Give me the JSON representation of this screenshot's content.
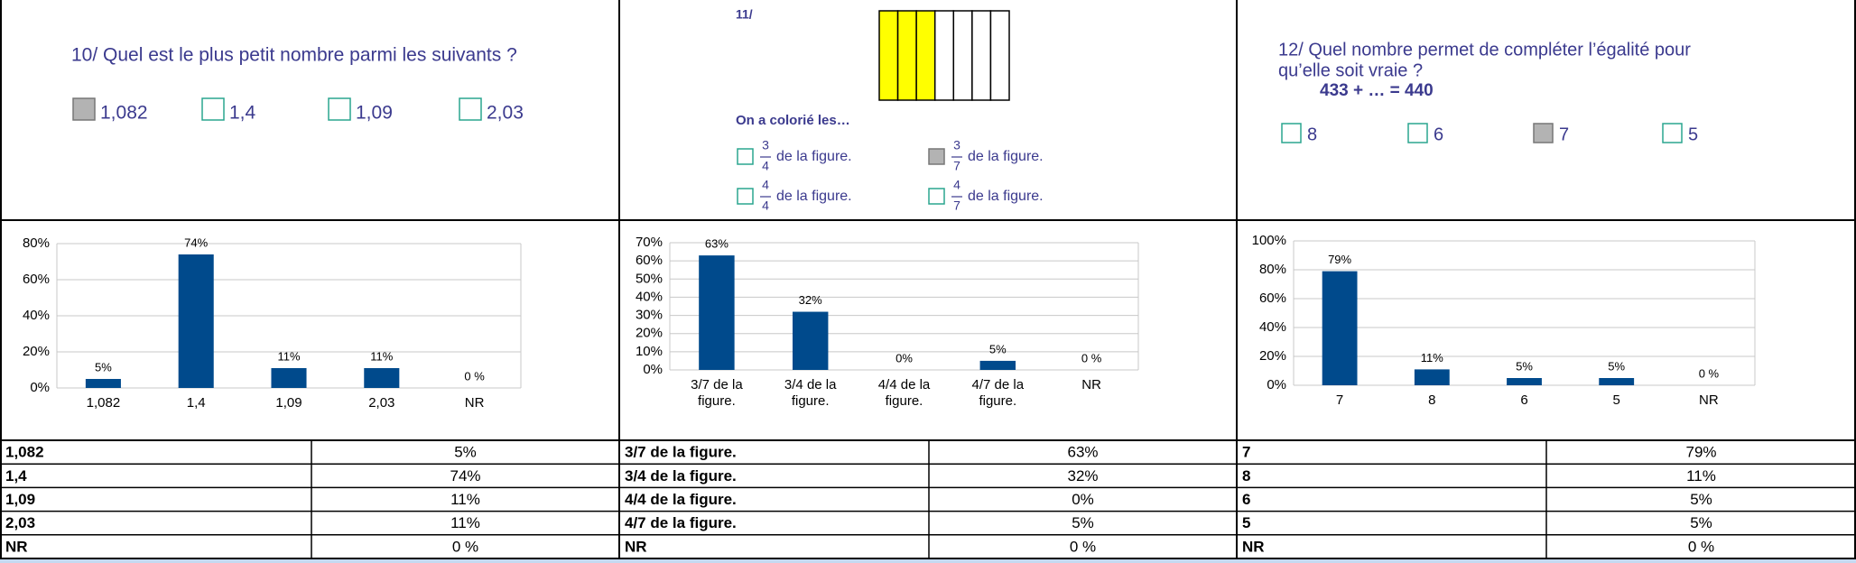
{
  "questions": [
    {
      "title": "10/ Quel est le plus petit nombre parmi les suivants ?",
      "options": [
        {
          "label": "1,082",
          "checked": true
        },
        {
          "label": "1,4",
          "checked": false
        },
        {
          "label": "1,09",
          "checked": false
        },
        {
          "label": "2,03",
          "checked": false
        }
      ]
    },
    {
      "label": "11/",
      "figure": {
        "parts": 7,
        "colored": 3,
        "color": "#ffff00"
      },
      "prompt": "On a colorié les…",
      "options": [
        {
          "numerator": "3",
          "denominator": "4",
          "text": "de la figure.",
          "checked": false
        },
        {
          "numerator": "3",
          "denominator": "7",
          "text": "de la figure.",
          "checked": true
        },
        {
          "numerator": "4",
          "denominator": "4",
          "text": "de la figure.",
          "checked": false
        },
        {
          "numerator": "4",
          "denominator": "7",
          "text": "de la figure.",
          "checked": false
        }
      ]
    },
    {
      "title": [
        "12/ Quel nombre permet de compléter l’égalité pour",
        "qu’elle soit vraie ?"
      ],
      "equation": "433 + … = 440",
      "options": [
        {
          "label": "8",
          "checked": false
        },
        {
          "label": "6",
          "checked": false
        },
        {
          "label": "7",
          "checked": true
        },
        {
          "label": "5",
          "checked": false
        }
      ]
    }
  ],
  "chart_data": [
    {
      "type": "bar",
      "categories": [
        "1,082",
        "1,4",
        "1,09",
        "2,03",
        "NR"
      ],
      "values": [
        5,
        74,
        11,
        11,
        0
      ],
      "value_labels": [
        "5%",
        "74%",
        "11%",
        "11%",
        "0 %"
      ],
      "color": "#004a8c",
      "ylim": [
        0,
        80
      ],
      "yticks": [
        {
          "value": 0,
          "label": "0%"
        },
        {
          "value": 20,
          "label": "20%"
        },
        {
          "value": 40,
          "label": "40%"
        },
        {
          "value": 60,
          "label": "60%"
        },
        {
          "value": 80,
          "label": "80%"
        }
      ],
      "grid": true
    },
    {
      "type": "bar",
      "categories": [
        "3/7 de la figure.",
        "3/4 de la figure.",
        "4/4 de la figure.",
        "4/7 de la figure.",
        "NR"
      ],
      "values": [
        63,
        32,
        0,
        5,
        0
      ],
      "value_labels": [
        "63%",
        "32%",
        "0%",
        "5%",
        "0 %"
      ],
      "color": "#004a8c",
      "ylim": [
        0,
        70
      ],
      "yticks": [
        {
          "value": 0,
          "label": "0%"
        },
        {
          "value": 10,
          "label": "10%"
        },
        {
          "value": 20,
          "label": "20%"
        },
        {
          "value": 30,
          "label": "30%"
        },
        {
          "value": 40,
          "label": "40%"
        },
        {
          "value": 50,
          "label": "50%"
        },
        {
          "value": 60,
          "label": "60%"
        },
        {
          "value": 70,
          "label": "70%"
        }
      ],
      "grid": true
    },
    {
      "type": "bar",
      "categories": [
        "7",
        "8",
        "6",
        "5",
        "NR"
      ],
      "values": [
        79,
        11,
        5,
        5,
        0
      ],
      "value_labels": [
        "79%",
        "11%",
        "5%",
        "5%",
        "0 %"
      ],
      "color": "#004a8c",
      "ylim": [
        0,
        100
      ],
      "yticks": [
        {
          "value": 0,
          "label": "0%"
        },
        {
          "value": 20,
          "label": "20%"
        },
        {
          "value": 40,
          "label": "40%"
        },
        {
          "value": 60,
          "label": "60%"
        },
        {
          "value": 80,
          "label": "80%"
        },
        {
          "value": 100,
          "label": "100%"
        }
      ],
      "grid": true
    }
  ],
  "tables": [
    {
      "rows": [
        [
          "1,082",
          "5%"
        ],
        [
          "1,4",
          "74%"
        ],
        [
          "1,09",
          "11%"
        ],
        [
          "2,03",
          "11%"
        ],
        [
          "NR",
          "0 %"
        ]
      ]
    },
    {
      "rows": [
        [
          "3/7 de la figure.",
          "63%"
        ],
        [
          "3/4 de la figure.",
          "32%"
        ],
        [
          "4/4 de la figure.",
          "0%"
        ],
        [
          "4/7 de la figure.",
          "5%"
        ],
        [
          "NR",
          "0 %"
        ]
      ]
    },
    {
      "rows": [
        [
          "7",
          "79%"
        ],
        [
          "8",
          "11%"
        ],
        [
          "6",
          "5%"
        ],
        [
          "5",
          "5%"
        ],
        [
          "NR",
          "0 %"
        ]
      ]
    }
  ]
}
